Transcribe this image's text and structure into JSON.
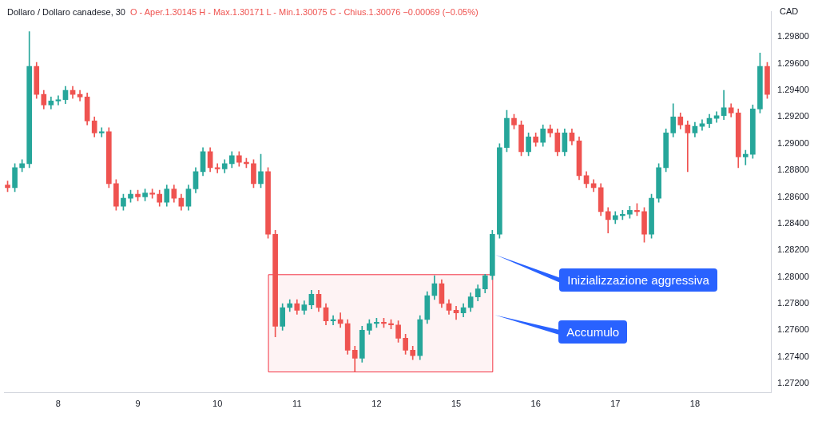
{
  "chart_data": {
    "type": "candlestick",
    "title": "Dollaro / Dollaro canadese, 30",
    "subtitle": "O - Aper.1.30145  H - Max.1.30171  L - Min.1.30075  C - Chius.1.30076  −0.00069 (−0.05%)",
    "ylabel": "CAD",
    "categories": [
      null,
      null,
      null,
      null,
      null,
      null,
      null,
      "8",
      null,
      null,
      null,
      null,
      null,
      null,
      null,
      null,
      null,
      null,
      "9",
      null,
      null,
      null,
      null,
      null,
      null,
      null,
      null,
      null,
      null,
      "10",
      null,
      null,
      null,
      null,
      null,
      null,
      null,
      null,
      null,
      null,
      "11",
      null,
      null,
      null,
      null,
      null,
      null,
      null,
      null,
      null,
      null,
      "12",
      null,
      null,
      null,
      null,
      null,
      null,
      null,
      null,
      null,
      null,
      "15",
      null,
      null,
      null,
      null,
      null,
      null,
      null,
      null,
      null,
      null,
      "16",
      null,
      null,
      null,
      null,
      null,
      null,
      null,
      null,
      null,
      null,
      "17",
      null,
      null,
      null,
      null,
      null,
      null,
      null,
      null,
      null,
      null,
      "18",
      null,
      null,
      null,
      null,
      null,
      null,
      null,
      null,
      null,
      null
    ],
    "ohlc": [
      [
        1.2869,
        1.2872,
        1.2864,
        1.2867
      ],
      [
        1.2867,
        1.2885,
        1.2864,
        1.2882
      ],
      [
        1.2882,
        1.2888,
        1.2879,
        1.2885
      ],
      [
        1.2885,
        1.2984,
        1.2882,
        1.2958
      ],
      [
        1.2958,
        1.2961,
        1.2934,
        1.2937
      ],
      [
        1.2937,
        1.294,
        1.2926,
        1.2929
      ],
      [
        1.2929,
        1.2935,
        1.2926,
        1.2932
      ],
      [
        1.2932,
        1.2936,
        1.2929,
        1.2933
      ],
      [
        1.2933,
        1.2943,
        1.293,
        1.294
      ],
      [
        1.294,
        1.2943,
        1.2934,
        1.2937
      ],
      [
        1.2937,
        1.294,
        1.2932,
        1.2935
      ],
      [
        1.2935,
        1.2938,
        1.2914,
        1.2917
      ],
      [
        1.2917,
        1.292,
        1.2905,
        1.2908
      ],
      [
        1.2908,
        1.2912,
        1.2905,
        1.2909
      ],
      [
        1.2909,
        1.2912,
        1.2867,
        1.287
      ],
      [
        1.287,
        1.2873,
        1.285,
        1.2853
      ],
      [
        1.2853,
        1.2862,
        1.285,
        1.2859
      ],
      [
        1.2859,
        1.2865,
        1.2856,
        1.2862
      ],
      [
        1.2862,
        1.2865,
        1.2857,
        1.286
      ],
      [
        1.286,
        1.2866,
        1.2857,
        1.2863
      ],
      [
        1.2863,
        1.2866,
        1.2859,
        1.2862
      ],
      [
        1.2862,
        1.2865,
        1.2853,
        1.2856
      ],
      [
        1.2856,
        1.2869,
        1.2853,
        1.2866
      ],
      [
        1.2866,
        1.2869,
        1.2856,
        1.2859
      ],
      [
        1.2859,
        1.2862,
        1.285,
        1.2853
      ],
      [
        1.2853,
        1.2869,
        1.285,
        1.2866
      ],
      [
        1.2866,
        1.2882,
        1.2863,
        1.2879
      ],
      [
        1.2879,
        1.2897,
        1.2876,
        1.2894
      ],
      [
        1.2894,
        1.2897,
        1.2879,
        1.2882
      ],
      [
        1.2882,
        1.2885,
        1.2878,
        1.2881
      ],
      [
        1.2881,
        1.2888,
        1.2878,
        1.2885
      ],
      [
        1.2885,
        1.2894,
        1.2882,
        1.2891
      ],
      [
        1.2891,
        1.2894,
        1.2883,
        1.2886
      ],
      [
        1.2886,
        1.2889,
        1.2882,
        1.2885
      ],
      [
        1.2885,
        1.2888,
        1.2867,
        1.287
      ],
      [
        1.287,
        1.2892,
        1.2867,
        1.2879
      ],
      [
        1.2879,
        1.2882,
        1.2829,
        1.2832
      ],
      [
        1.2832,
        1.2835,
        1.2755,
        1.2763
      ],
      [
        1.2763,
        1.278,
        1.276,
        1.2777
      ],
      [
        1.2777,
        1.2783,
        1.2774,
        1.278
      ],
      [
        1.278,
        1.2783,
        1.2772,
        1.2775
      ],
      [
        1.2775,
        1.2782,
        1.2772,
        1.2779
      ],
      [
        1.2779,
        1.279,
        1.2776,
        1.2787
      ],
      [
        1.2787,
        1.279,
        1.2774,
        1.2777
      ],
      [
        1.2777,
        1.278,
        1.2764,
        1.2767
      ],
      [
        1.2767,
        1.2771,
        1.2764,
        1.2768
      ],
      [
        1.2768,
        1.2773,
        1.2762,
        1.2765
      ],
      [
        1.2765,
        1.2768,
        1.2742,
        1.2745
      ],
      [
        1.2745,
        1.2748,
        1.2729,
        1.2739
      ],
      [
        1.2739,
        1.2763,
        1.2736,
        1.276
      ],
      [
        1.276,
        1.2768,
        1.2757,
        1.2765
      ],
      [
        1.2765,
        1.2769,
        1.2762,
        1.2766
      ],
      [
        1.2766,
        1.2769,
        1.2762,
        1.2765
      ],
      [
        1.2765,
        1.2768,
        1.2761,
        1.2764
      ],
      [
        1.2764,
        1.2767,
        1.2751,
        1.2754
      ],
      [
        1.2754,
        1.2757,
        1.2742,
        1.2745
      ],
      [
        1.2745,
        1.2748,
        1.2738,
        1.2741
      ],
      [
        1.2741,
        1.2771,
        1.2738,
        1.2768
      ],
      [
        1.2768,
        1.2789,
        1.2765,
        1.2786
      ],
      [
        1.2786,
        1.2801,
        1.2783,
        1.2795
      ],
      [
        1.2795,
        1.2798,
        1.2777,
        1.278
      ],
      [
        1.278,
        1.2783,
        1.2772,
        1.2775
      ],
      [
        1.2775,
        1.2778,
        1.2768,
        1.2773
      ],
      [
        1.2773,
        1.278,
        1.277,
        1.2777
      ],
      [
        1.2777,
        1.2788,
        1.2774,
        1.2785
      ],
      [
        1.2785,
        1.2794,
        1.2782,
        1.2791
      ],
      [
        1.2791,
        1.2802,
        1.2788,
        1.2801
      ],
      [
        1.2801,
        1.2835,
        1.2798,
        1.2832
      ],
      [
        1.2832,
        1.29,
        1.2829,
        1.2897
      ],
      [
        1.2897,
        1.2925,
        1.2894,
        1.2919
      ],
      [
        1.2919,
        1.2922,
        1.2911,
        1.2914
      ],
      [
        1.2914,
        1.2917,
        1.2891,
        1.2894
      ],
      [
        1.2894,
        1.2908,
        1.2891,
        1.2905
      ],
      [
        1.2905,
        1.2908,
        1.2898,
        1.2901
      ],
      [
        1.2901,
        1.2914,
        1.2898,
        1.2911
      ],
      [
        1.2911,
        1.2914,
        1.2905,
        1.2908
      ],
      [
        1.2908,
        1.2911,
        1.2891,
        1.2894
      ],
      [
        1.2894,
        1.2911,
        1.2891,
        1.2908
      ],
      [
        1.2908,
        1.2911,
        1.2899,
        1.2902
      ],
      [
        1.2902,
        1.2905,
        1.2873,
        1.2876
      ],
      [
        1.2876,
        1.2879,
        1.2867,
        1.287
      ],
      [
        1.287,
        1.2873,
        1.2864,
        1.2867
      ],
      [
        1.2867,
        1.287,
        1.2846,
        1.2849
      ],
      [
        1.2849,
        1.2852,
        1.2833,
        1.2843
      ],
      [
        1.2843,
        1.2849,
        1.284,
        1.2846
      ],
      [
        1.2846,
        1.285,
        1.2843,
        1.2847
      ],
      [
        1.2847,
        1.2853,
        1.2844,
        1.285
      ],
      [
        1.285,
        1.2855,
        1.2846,
        1.2849
      ],
      [
        1.2849,
        1.2852,
        1.2826,
        1.2832
      ],
      [
        1.2832,
        1.2862,
        1.2829,
        1.2859
      ],
      [
        1.2859,
        1.2885,
        1.2856,
        1.2882
      ],
      [
        1.2882,
        1.2911,
        1.2879,
        1.2908
      ],
      [
        1.2908,
        1.293,
        1.2905,
        1.292
      ],
      [
        1.292,
        1.2923,
        1.2911,
        1.2914
      ],
      [
        1.2914,
        1.2917,
        1.2879,
        1.2908
      ],
      [
        1.2908,
        1.2916,
        1.2905,
        1.2913
      ],
      [
        1.2913,
        1.2918,
        1.291,
        1.2915
      ],
      [
        1.2915,
        1.2922,
        1.2912,
        1.2919
      ],
      [
        1.2919,
        1.2924,
        1.2916,
        1.2921
      ],
      [
        1.2921,
        1.294,
        1.2918,
        1.2927
      ],
      [
        1.2927,
        1.293,
        1.292,
        1.2923
      ],
      [
        1.2923,
        1.2926,
        1.2882,
        1.289
      ],
      [
        1.289,
        1.2895,
        1.2884,
        1.2892
      ],
      [
        1.2892,
        1.2929,
        1.2889,
        1.2926
      ],
      [
        1.2926,
        1.2968,
        1.2923,
        1.2958
      ],
      [
        1.2958,
        1.2961,
        1.2934,
        1.2937
      ]
    ],
    "ylim": [
      1.2713,
      1.2999
    ],
    "yticks": [
      {
        "value": 1.272,
        "label": "1.27200"
      },
      {
        "value": 1.274,
        "label": "1.27400"
      },
      {
        "value": 1.276,
        "label": "1.27600"
      },
      {
        "value": 1.278,
        "label": "1.27800"
      },
      {
        "value": 1.28,
        "label": "1.28000"
      },
      {
        "value": 1.282,
        "label": "1.28200"
      },
      {
        "value": 1.284,
        "label": "1.28400"
      },
      {
        "value": 1.286,
        "label": "1.28600"
      },
      {
        "value": 1.288,
        "label": "1.28800"
      },
      {
        "value": 1.29,
        "label": "1.29000"
      },
      {
        "value": 1.292,
        "label": "1.29200"
      },
      {
        "value": 1.294,
        "label": "1.29400"
      },
      {
        "value": 1.296,
        "label": "1.29600"
      },
      {
        "value": 1.298,
        "label": "1.29800"
      }
    ],
    "bands": [
      {
        "axis": "y",
        "from": 1.2729,
        "to": 1.2802,
        "label": "Accumulo",
        "color": "#f23645"
      }
    ],
    "annotations": [
      "Inizializzazione aggressiva"
    ],
    "grid": false,
    "legend": false
  }
}
